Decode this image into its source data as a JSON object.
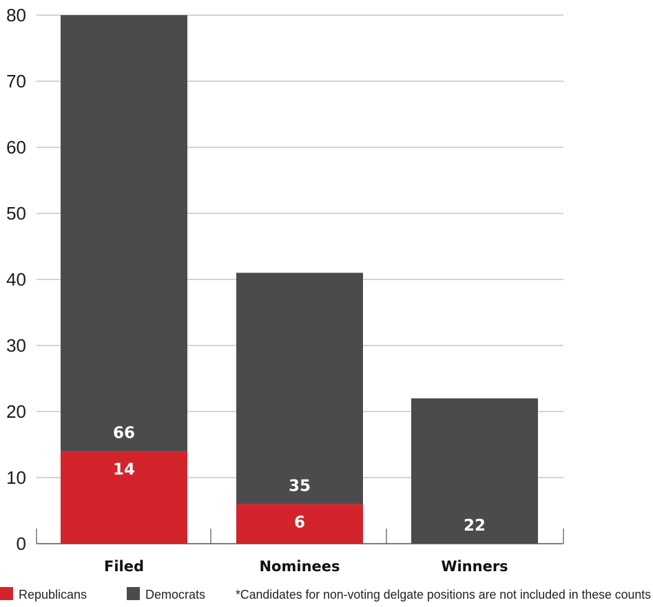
{
  "chart_data": {
    "type": "bar",
    "stacked": true,
    "categories": [
      "Filed",
      "Nominees",
      "Winners"
    ],
    "series": [
      {
        "name": "Republicans",
        "values": [
          14,
          6,
          0
        ],
        "color": "#d3242b"
      },
      {
        "name": "Democrats",
        "values": [
          66,
          35,
          22
        ],
        "color": "#4b4b4d"
      }
    ],
    "data_labels": {
      "Republicans": [
        "14",
        "6",
        ""
      ],
      "Democrats": [
        "66",
        "35",
        "22"
      ]
    },
    "ylim": [
      0,
      80
    ],
    "yticks": [
      0,
      10,
      20,
      30,
      40,
      50,
      60,
      70,
      80
    ],
    "grid": true,
    "legend": "bottom-left",
    "footnote": "*Candidates for non-voting delgate positions are not included in these counts"
  }
}
